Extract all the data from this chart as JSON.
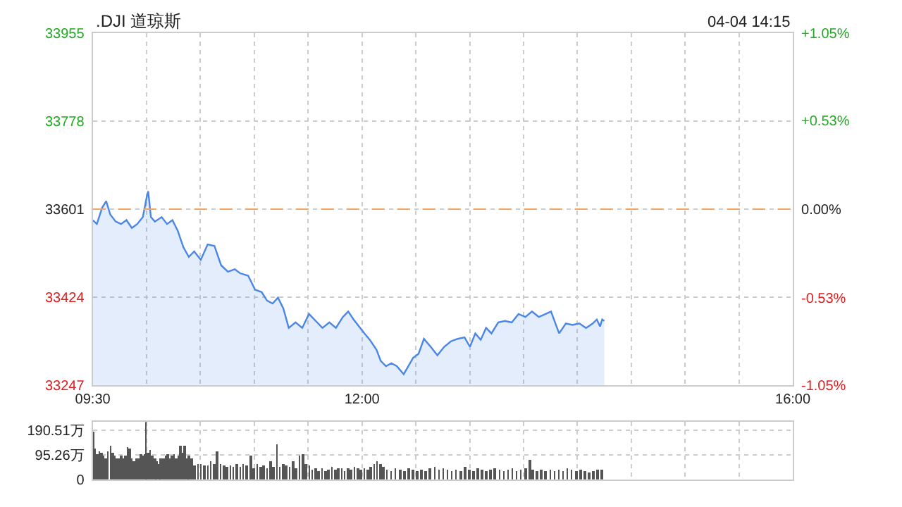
{
  "chart_data": [
    {
      "type": "area",
      "title": ".DJI 道琼斯",
      "annotations": [
        "04-04 14:15"
      ],
      "x": [
        9.5,
        9.538,
        9.588,
        9.625,
        9.663,
        9.713,
        9.763,
        9.813,
        9.863,
        9.913,
        9.965,
        10.002,
        10.015,
        10.04,
        10.077,
        10.14,
        10.19,
        10.24,
        10.29,
        10.342,
        10.392,
        10.442,
        10.503,
        10.567,
        10.63,
        10.692,
        10.755,
        10.818,
        10.868,
        10.943,
        11.007,
        11.068,
        11.118,
        11.17,
        11.22,
        11.27,
        11.32,
        11.383,
        11.445,
        11.508,
        11.57,
        11.633,
        11.697,
        11.758,
        11.822,
        11.872,
        11.922,
        11.972,
        12.023,
        12.073,
        12.135,
        12.173,
        12.223,
        12.273,
        12.323,
        12.387,
        12.425,
        12.475,
        12.525,
        12.575,
        12.638,
        12.7,
        12.763,
        12.825,
        12.888,
        12.952,
        13.002,
        13.052,
        13.102,
        13.152,
        13.202,
        13.265,
        13.328,
        13.39,
        13.453,
        13.517,
        13.578,
        13.642,
        13.705,
        13.755,
        13.83,
        13.893,
        13.955,
        14.018,
        14.08,
        14.143,
        14.18,
        14.21,
        14.23,
        14.25
      ],
      "series": [
        {
          "color": "#4a86e8",
          "values": [
            33579,
            33571,
            33604,
            33617,
            33590,
            33576,
            33571,
            33579,
            33563,
            33571,
            33585,
            33626,
            33637,
            33585,
            33576,
            33585,
            33571,
            33579,
            33557,
            33524,
            33505,
            33516,
            33499,
            33530,
            33527,
            33488,
            33475,
            33480,
            33472,
            33467,
            33439,
            33434,
            33417,
            33411,
            33423,
            33401,
            33362,
            33373,
            33362,
            33390,
            33376,
            33362,
            33373,
            33362,
            33384,
            33395,
            33379,
            33365,
            33351,
            33338,
            33318,
            33296,
            33285,
            33291,
            33285,
            33269,
            33283,
            33302,
            33310,
            33340,
            33324,
            33307,
            33324,
            33335,
            33340,
            33343,
            33324,
            33351,
            33338,
            33362,
            33351,
            33373,
            33376,
            33373,
            33390,
            33384,
            33395,
            33384,
            33390,
            33395,
            33351,
            33371,
            33368,
            33371,
            33362,
            33371,
            33379,
            33365,
            33379,
            33376
          ]
        }
      ],
      "xlim": [
        9.5,
        16
      ],
      "xticks": [
        {
          "value": 9.5,
          "label": "09:30"
        },
        {
          "value": 10,
          "label": null
        },
        {
          "value": 10.5,
          "label": null
        },
        {
          "value": 11,
          "label": null
        },
        {
          "value": 11.5,
          "label": null
        },
        {
          "value": 12,
          "label": "12:00"
        },
        {
          "value": 12.5,
          "label": null
        },
        {
          "value": 13,
          "label": null
        },
        {
          "value": 13.5,
          "label": null
        },
        {
          "value": 14,
          "label": null
        },
        {
          "value": 14.5,
          "label": null
        },
        {
          "value": 15,
          "label": null
        },
        {
          "value": 15.5,
          "label": null
        },
        {
          "value": 16,
          "label": "16:00"
        }
      ],
      "ylim": [
        33247,
        33955
      ],
      "yticks": [
        33247,
        33424,
        33601,
        33778,
        33955
      ],
      "y2lim": [
        -1.05,
        1.05
      ],
      "y2ticks": [
        {
          "value": -1.05,
          "label": "-1.05%"
        },
        {
          "value": -0.53,
          "label": "-0.53%"
        },
        {
          "value": 0,
          "label": "0.00%"
        },
        {
          "value": 0.53,
          "label": "+0.53%"
        },
        {
          "value": 1.05,
          "label": "+1.05%"
        }
      ],
      "ref_lines": [
        {
          "axis": "y",
          "value": 33601,
          "color": "#f4a460",
          "line_style": "dashed"
        }
      ],
      "grid": true
    },
    {
      "type": "bar",
      "x": [
        9.5,
        9.52,
        9.54,
        9.56,
        9.58,
        9.6,
        9.62,
        9.64,
        9.661,
        9.681,
        9.701,
        9.721,
        9.741,
        9.761,
        9.781,
        9.801,
        9.821,
        9.841,
        9.861,
        9.881,
        9.901,
        9.921,
        9.942,
        9.962,
        9.982,
        9.992,
        10.012,
        10.032,
        10.052,
        10.072,
        10.092,
        10.112,
        10.132,
        10.152,
        10.172,
        10.192,
        10.212,
        10.232,
        10.253,
        10.273,
        10.293,
        10.313,
        10.333,
        10.353,
        10.373,
        10.393,
        10.413,
        10.443,
        10.473,
        10.503,
        10.534,
        10.564,
        10.594,
        10.624,
        10.654,
        10.684,
        10.714,
        10.744,
        10.774,
        10.804,
        10.835,
        10.865,
        10.895,
        10.925,
        10.965,
        10.995,
        11.025,
        11.055,
        11.085,
        11.115,
        11.146,
        11.176,
        11.206,
        11.236,
        11.266,
        11.296,
        11.326,
        11.356,
        11.386,
        11.416,
        11.447,
        11.477,
        11.507,
        11.537,
        11.567,
        11.597,
        11.627,
        11.657,
        11.687,
        11.718,
        11.748,
        11.778,
        11.808,
        11.838,
        11.868,
        11.898,
        11.928,
        11.958,
        11.988,
        12.019,
        12.049,
        12.079,
        12.109,
        12.139,
        12.169,
        12.199,
        12.229,
        12.269,
        12.309,
        12.35,
        12.39,
        12.43,
        12.47,
        12.51,
        12.55,
        12.591,
        12.631,
        12.671,
        12.711,
        12.751,
        12.791,
        12.831,
        12.871,
        12.912,
        12.952,
        12.992,
        13.032,
        13.072,
        13.112,
        13.152,
        13.193,
        13.233,
        13.273,
        13.313,
        13.353,
        13.393,
        13.433,
        13.473,
        13.514,
        13.554,
        13.584,
        13.624,
        13.664,
        13.704,
        13.744,
        13.784,
        13.825,
        13.865,
        13.905,
        13.945,
        13.985,
        14.025,
        14.066,
        14.106,
        14.146,
        14.186,
        14.226
      ],
      "series": [
        {
          "color": "#555555",
          "values": [
            184,
            121,
            99,
            110,
            104,
            89,
            83,
            110,
            131,
            104,
            89,
            83,
            78,
            89,
            83,
            89,
            125,
            121,
            78,
            68,
            78,
            83,
            99,
            89,
            99,
            222,
            104,
            116,
            89,
            78,
            68,
            61,
            78,
            83,
            89,
            95,
            78,
            89,
            99,
            83,
            89,
            131,
            104,
            131,
            78,
            89,
            83,
            53,
            57,
            57,
            53,
            51,
            68,
            57,
            110,
            57,
            51,
            47,
            53,
            47,
            57,
            47,
            61,
            53,
            89,
            40,
            57,
            47,
            53,
            40,
            68,
            47,
            135,
            47,
            61,
            53,
            47,
            68,
            40,
            89,
            99,
            61,
            53,
            36,
            40,
            32,
            40,
            32,
            36,
            47,
            36,
            40,
            40,
            32,
            40,
            36,
            47,
            40,
            36,
            40,
            36,
            47,
            57,
            68,
            57,
            47,
            36,
            32,
            40,
            36,
            32,
            40,
            36,
            32,
            36,
            32,
            40,
            47,
            36,
            40,
            36,
            32,
            36,
            32,
            47,
            36,
            32,
            40,
            36,
            32,
            36,
            40,
            36,
            32,
            36,
            40,
            32,
            36,
            40,
            74,
            36,
            32,
            36,
            32,
            36,
            32,
            36,
            32,
            40,
            36,
            32,
            36,
            32,
            25,
            32,
            36,
            36
          ]
        }
      ],
      "xlim": [
        9.5,
        16
      ],
      "xticks": [
        {
          "value": 10,
          "label": null
        },
        {
          "value": 10.5,
          "label": null
        },
        {
          "value": 11,
          "label": null
        },
        {
          "value": 11.5,
          "label": null
        },
        {
          "value": 12,
          "label": null
        },
        {
          "value": 12.5,
          "label": null
        },
        {
          "value": 13,
          "label": null
        },
        {
          "value": 13.5,
          "label": null
        },
        {
          "value": 14,
          "label": null
        },
        {
          "value": 14.5,
          "label": null
        },
        {
          "value": 15,
          "label": null
        },
        {
          "value": 15.5,
          "label": null
        }
      ],
      "ylim": [
        0,
        222
      ],
      "yticks": [
        0,
        {
          "value": 95.26,
          "label": "95.26万"
        },
        {
          "value": 190.51,
          "label": "190.51万"
        }
      ],
      "tick_labels": "y",
      "grid": true
    }
  ]
}
